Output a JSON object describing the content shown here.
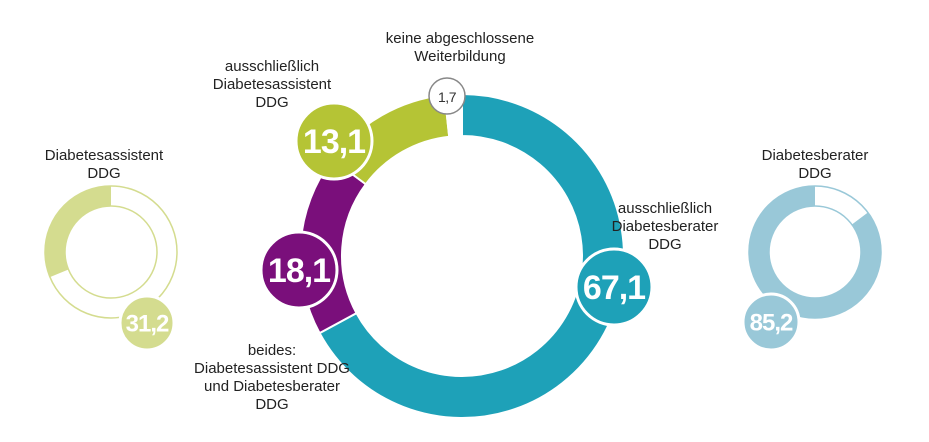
{
  "chart_data": [
    {
      "type": "pie",
      "variant": "donut",
      "slices": [
        {
          "label_lines": [
            "ausschließlich",
            "Diabetesberater",
            "DDG"
          ],
          "value": 67.1,
          "display": "67,1",
          "color": "#1ea1b8"
        },
        {
          "label_lines": [
            "beides:",
            "Diabetesassistent DDG",
            "und Diabetesberater",
            "DDG"
          ],
          "value": 18.1,
          "display": "18,1",
          "color": "#7a0f7b"
        },
        {
          "label_lines": [
            "ausschließlich",
            "Diabetesassistent",
            "DDG"
          ],
          "value": 13.1,
          "display": "13,1",
          "color": "#b5c435"
        },
        {
          "label_lines": [
            "keine abgeschlossene",
            "Weiterbildung"
          ],
          "value": 1.7,
          "display": "1,7",
          "color": "#ffffff"
        }
      ]
    },
    {
      "type": "pie",
      "variant": "donut",
      "title_lines": [
        "Diabetesassistent",
        "DDG"
      ],
      "value": 31.2,
      "display": "31,2",
      "color": "#d4dc8f"
    },
    {
      "type": "pie",
      "variant": "donut",
      "title_lines": [
        "Diabetesberater",
        "DDG"
      ],
      "value": 85.2,
      "display": "85,2",
      "color": "#99c8d8"
    }
  ]
}
